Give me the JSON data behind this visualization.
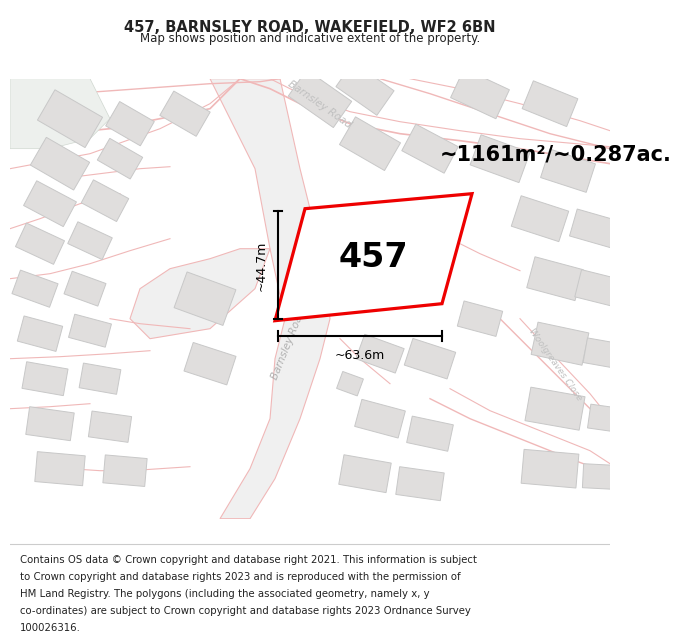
{
  "title": "457, BARNSLEY ROAD, WAKEFIELD, WF2 6BN",
  "subtitle": "Map shows position and indicative extent of the property.",
  "area_text": "~1161m²/~0.287ac.",
  "property_label": "457",
  "dim_width": "~63.6m",
  "dim_height": "~44.7m",
  "footer_lines": [
    "Contains OS data © Crown copyright and database right 2021. This information is subject",
    "to Crown copyright and database rights 2023 and is reproduced with the permission of",
    "HM Land Registry. The polygons (including the associated geometry, namely x, y",
    "co-ordinates) are subject to Crown copyright and database rights 2023 Ordnance Survey",
    "100026316."
  ],
  "bg_color": "#ffffff",
  "map_bg": "#ffffff",
  "title_color": "#222222",
  "footer_color": "#222222",
  "road_line_color": "#f0b8b8",
  "road_fill_color": "#f5e8e8",
  "building_fill": "#e0dedd",
  "building_outline": "#c8c8c8",
  "property_color": "#ee0000",
  "road_label_color": "#bbbbbb",
  "green_fill": "#e8ede8",
  "gray_road_fill": "#e8e8e8"
}
